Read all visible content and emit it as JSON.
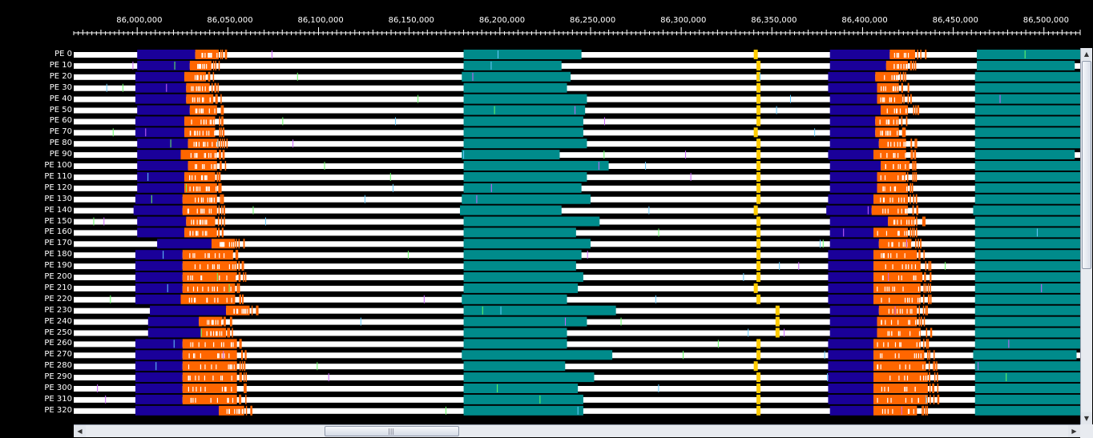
{
  "ruler": {
    "labels": [
      "86,000,000",
      "86,050,000",
      "86,100,000",
      "86,150,000",
      "86,200,000",
      "86,250,000",
      "86,300,000",
      "86,350,000",
      "86,400,000",
      "86,450,000",
      "86,500,000"
    ]
  },
  "timeline": {
    "view_start": 85965000,
    "view_end": 86520000,
    "row_labels": [
      "PE 0",
      "PE 10",
      "PE 20",
      "PE 30",
      "PE 40",
      "PE 50",
      "PE 60",
      "PE 70",
      "PE 80",
      "PE 90",
      "PE 100",
      "PE 110",
      "PE 120",
      "PE 130",
      "PE 140",
      "PE 150",
      "PE 160",
      "PE 170",
      "PE 180",
      "PE 190",
      "PE 200",
      "PE 210",
      "PE 220",
      "PE 230",
      "PE 240",
      "PE 250",
      "PE 260",
      "PE 270",
      "PE 280",
      "PE 290",
      "PE 300",
      "PE 310",
      "PE 320"
    ],
    "colors": {
      "idle": "#ffffff",
      "phase_a": "#1a0099",
      "phase_b": "#ff6600",
      "phase_c": "#008b8b",
      "marker": "#ffcc00",
      "background": "#000000"
    },
    "rows": [
      {
        "a": [
          86000000,
          86032000
        ],
        "b": [
          86032000,
          86045000
        ],
        "c": [
          86180000,
          86245000
        ],
        "d": [
          86382000,
          86415000
        ],
        "e": [
          86415000,
          86429000
        ],
        "f": [
          86463000,
          86520000
        ]
      },
      {
        "a": [
          86000000,
          86029000
        ],
        "b": [
          86029000,
          86041000
        ],
        "c": [
          86180000,
          86234000
        ],
        "d": [
          86382000,
          86413000
        ],
        "e": [
          86413000,
          86425000
        ],
        "f": [
          86463000,
          86517000
        ]
      },
      {
        "a": [
          85999000,
          86026000
        ],
        "b": [
          86026000,
          86038000
        ],
        "c": [
          86179000,
          86239000
        ],
        "d": [
          86381000,
          86407000
        ],
        "e": [
          86407000,
          86420000
        ],
        "f": [
          86462000,
          86520000
        ]
      },
      {
        "a": [
          85999000,
          86027000
        ],
        "b": [
          86027000,
          86040000
        ],
        "c": [
          86180000,
          86237000
        ],
        "d": [
          86381000,
          86408000
        ],
        "e": [
          86408000,
          86420000
        ],
        "f": [
          86462000,
          86520000
        ]
      },
      {
        "a": [
          85999000,
          86027000
        ],
        "b": [
          86027000,
          86042000
        ],
        "c": [
          86180000,
          86248000
        ],
        "d": [
          86382000,
          86408000
        ],
        "e": [
          86408000,
          86422000
        ],
        "f": [
          86462000,
          86520000
        ]
      },
      {
        "a": [
          86000000,
          86029000
        ],
        "b": [
          86029000,
          86044000
        ],
        "c": [
          86180000,
          86247000
        ],
        "d": [
          86382000,
          86410000
        ],
        "e": [
          86410000,
          86425000
        ],
        "f": [
          86462000,
          86520000
        ]
      },
      {
        "a": [
          85999000,
          86026000
        ],
        "b": [
          86026000,
          86043000
        ],
        "c": [
          86180000,
          86246000
        ],
        "d": [
          86382000,
          86407000
        ],
        "e": [
          86407000,
          86420000
        ],
        "f": [
          86462000,
          86520000
        ]
      },
      {
        "a": [
          85999000,
          86026000
        ],
        "b": [
          86026000,
          86043000
        ],
        "c": [
          86180000,
          86246000
        ],
        "d": [
          86382000,
          86407000
        ],
        "e": [
          86407000,
          86420000
        ],
        "f": [
          86462000,
          86520000
        ]
      },
      {
        "a": [
          86000000,
          86028000
        ],
        "b": [
          86028000,
          86045000
        ],
        "c": [
          86180000,
          86248000
        ],
        "d": [
          86382000,
          86409000
        ],
        "e": [
          86409000,
          86424000
        ],
        "f": [
          86462000,
          86520000
        ]
      },
      {
        "a": [
          86000000,
          86024000
        ],
        "b": [
          86024000,
          86044000
        ],
        "c": [
          86179000,
          86233000
        ],
        "d": [
          86381000,
          86406000
        ],
        "e": [
          86406000,
          86424000
        ],
        "f": [
          86462000,
          86517000
        ]
      },
      {
        "a": [
          86000000,
          86028000
        ],
        "b": [
          86028000,
          86044000
        ],
        "c": [
          86180000,
          86260000
        ],
        "d": [
          86382000,
          86410000
        ],
        "e": [
          86410000,
          86426000
        ],
        "f": [
          86462000,
          86520000
        ]
      },
      {
        "a": [
          86000000,
          86026000
        ],
        "b": [
          86026000,
          86043000
        ],
        "c": [
          86180000,
          86248000
        ],
        "d": [
          86382000,
          86408000
        ],
        "e": [
          86408000,
          86424000
        ],
        "f": [
          86462000,
          86520000
        ]
      },
      {
        "a": [
          86000000,
          86026000
        ],
        "b": [
          86026000,
          86044000
        ],
        "c": [
          86180000,
          86245000
        ],
        "d": [
          86382000,
          86408000
        ],
        "e": [
          86408000,
          86425000
        ],
        "f": [
          86462000,
          86520000
        ]
      },
      {
        "a": [
          85999000,
          86025000
        ],
        "b": [
          86025000,
          86044000
        ],
        "c": [
          86179000,
          86250000
        ],
        "d": [
          86381000,
          86406000
        ],
        "e": [
          86406000,
          86425000
        ],
        "f": [
          86462000,
          86520000
        ]
      },
      {
        "a": [
          85998000,
          86025000
        ],
        "b": [
          86025000,
          86044000
        ],
        "c": [
          86178000,
          86234000
        ],
        "d": [
          86380000,
          86405000
        ],
        "e": [
          86405000,
          86425000
        ],
        "f": [
          86461000,
          86520000
        ]
      },
      {
        "a": [
          86000000,
          86027000
        ],
        "b": [
          86027000,
          86043000
        ],
        "c": [
          86180000,
          86255000
        ],
        "d": [
          86382000,
          86414000
        ],
        "e": [
          86414000,
          86429000
        ],
        "f": [
          86462000,
          86520000
        ]
      },
      {
        "a": [
          86000000,
          86026000
        ],
        "b": [
          86026000,
          86044000
        ],
        "c": [
          86180000,
          86242000
        ],
        "d": [
          86382000,
          86406000
        ],
        "e": [
          86406000,
          86425000
        ],
        "f": [
          86462000,
          86520000
        ]
      },
      {
        "a": [
          86011000,
          86041000
        ],
        "b": [
          86041000,
          86054000
        ],
        "c": [
          86180000,
          86250000
        ],
        "d": [
          86382000,
          86409000
        ],
        "e": [
          86409000,
          86427000
        ],
        "f": [
          86462000,
          86520000
        ]
      },
      {
        "a": [
          85999000,
          86025000
        ],
        "b": [
          86025000,
          86053000
        ],
        "c": [
          86180000,
          86245000
        ],
        "d": [
          86381000,
          86406000
        ],
        "e": [
          86406000,
          86430000
        ],
        "f": [
          86462000,
          86520000
        ]
      },
      {
        "a": [
          85999000,
          86025000
        ],
        "b": [
          86025000,
          86055000
        ],
        "c": [
          86180000,
          86242000
        ],
        "d": [
          86381000,
          86406000
        ],
        "e": [
          86406000,
          86432000
        ],
        "f": [
          86462000,
          86520000
        ]
      },
      {
        "a": [
          85999000,
          86025000
        ],
        "b": [
          86025000,
          86055000
        ],
        "c": [
          86180000,
          86246000
        ],
        "d": [
          86381000,
          86406000
        ],
        "e": [
          86406000,
          86433000
        ],
        "f": [
          86462000,
          86520000
        ]
      },
      {
        "a": [
          85999000,
          86025000
        ],
        "b": [
          86025000,
          86054000
        ],
        "c": [
          86180000,
          86243000
        ],
        "d": [
          86381000,
          86406000
        ],
        "e": [
          86406000,
          86432000
        ],
        "f": [
          86462000,
          86520000
        ]
      },
      {
        "a": [
          85999000,
          86024000
        ],
        "b": [
          86024000,
          86054000
        ],
        "c": [
          86179000,
          86237000
        ],
        "d": [
          86381000,
          86406000
        ],
        "e": [
          86406000,
          86432000
        ],
        "f": [
          86462000,
          86520000
        ]
      },
      {
        "a": [
          86007000,
          86049000
        ],
        "b": [
          86049000,
          86062000
        ],
        "c": [
          86180000,
          86264000
        ],
        "d": [
          86382000,
          86409000
        ],
        "e": [
          86409000,
          86430000
        ],
        "f": [
          86462000,
          86520000
        ]
      },
      {
        "a": [
          86006000,
          86034000
        ],
        "b": [
          86034000,
          86047000
        ],
        "c": [
          86180000,
          86248000
        ],
        "d": [
          86382000,
          86408000
        ],
        "e": [
          86408000,
          86430000
        ],
        "f": [
          86462000,
          86520000
        ]
      },
      {
        "a": [
          86006000,
          86035000
        ],
        "b": [
          86035000,
          86049000
        ],
        "c": [
          86180000,
          86237000
        ],
        "d": [
          86382000,
          86408000
        ],
        "e": [
          86408000,
          86432000
        ],
        "f": [
          86462000,
          86520000
        ]
      },
      {
        "a": [
          85999000,
          86025000
        ],
        "b": [
          86025000,
          86055000
        ],
        "c": [
          86180000,
          86237000
        ],
        "d": [
          86381000,
          86406000
        ],
        "e": [
          86406000,
          86432000
        ],
        "f": [
          86462000,
          86520000
        ]
      },
      {
        "a": [
          85999000,
          86025000
        ],
        "b": [
          86025000,
          86055000
        ],
        "c": [
          86179000,
          86262000
        ],
        "d": [
          86381000,
          86406000
        ],
        "e": [
          86406000,
          86434000
        ],
        "f": [
          86461000,
          86518000
        ]
      },
      {
        "a": [
          85999000,
          86025000
        ],
        "b": [
          86025000,
          86055000
        ],
        "c": [
          86180000,
          86236000
        ],
        "d": [
          86381000,
          86406000
        ],
        "e": [
          86406000,
          86435000
        ],
        "f": [
          86462000,
          86520000
        ]
      },
      {
        "a": [
          85999000,
          86025000
        ],
        "b": [
          86025000,
          86055000
        ],
        "c": [
          86180000,
          86252000
        ],
        "d": [
          86381000,
          86406000
        ],
        "e": [
          86406000,
          86436000
        ],
        "f": [
          86462000,
          86520000
        ]
      },
      {
        "a": [
          85999000,
          86025000
        ],
        "b": [
          86025000,
          86055000
        ],
        "c": [
          86180000,
          86243000
        ],
        "d": [
          86381000,
          86406000
        ],
        "e": [
          86406000,
          86436000
        ],
        "f": [
          86462000,
          86520000
        ]
      },
      {
        "a": [
          85999000,
          86025000
        ],
        "b": [
          86025000,
          86055000
        ],
        "c": [
          86180000,
          86246000
        ],
        "d": [
          86381000,
          86406000
        ],
        "e": [
          86406000,
          86436000
        ],
        "f": [
          86462000,
          86520000
        ]
      },
      {
        "a": [
          85999000,
          86045000
        ],
        "b": [
          86045000,
          86059000
        ],
        "c": [
          86180000,
          86246000
        ],
        "d": [
          86382000,
          86406000
        ],
        "e": [
          86406000,
          86430000
        ],
        "f": [
          86462000,
          86520000
        ]
      }
    ],
    "markers": [
      86341500,
      86340000,
      86352000
    ]
  },
  "scroll": {
    "left_arrow": "◀",
    "right_arrow": "▶",
    "up_arrow": "▲",
    "down_arrow": "▼",
    "grip": "|||"
  }
}
